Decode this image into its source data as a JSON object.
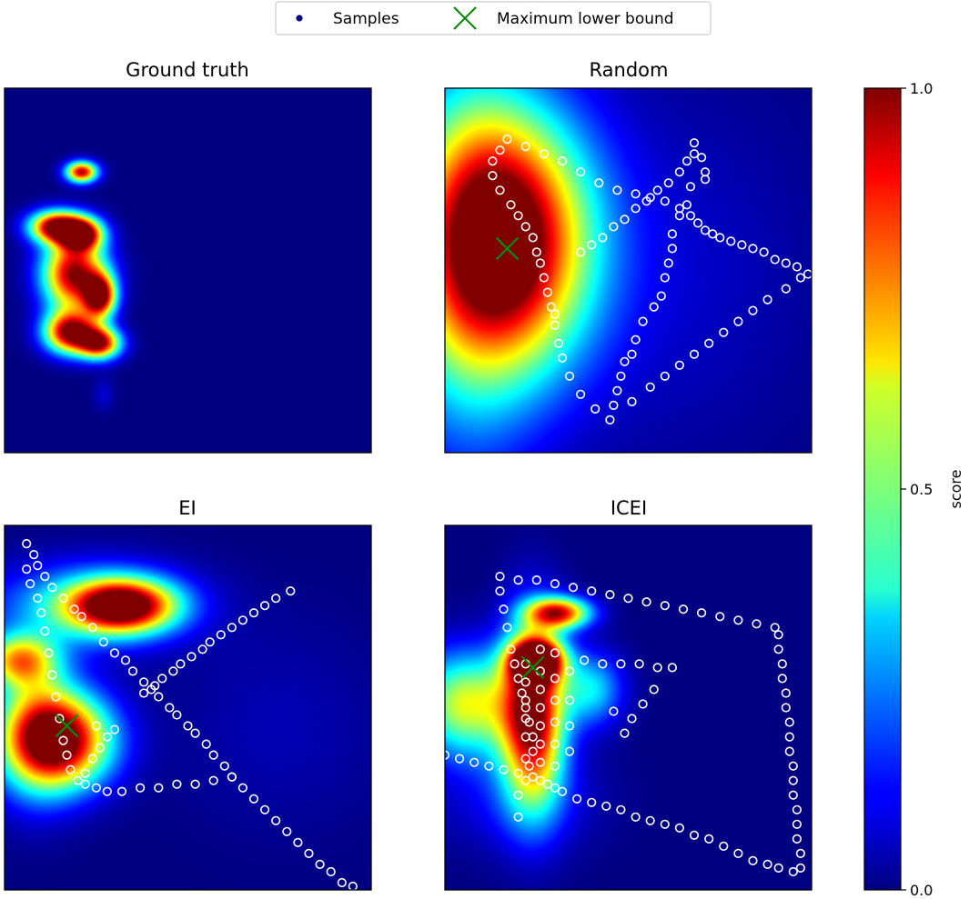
{
  "legend": {
    "samples_label": "Samples",
    "max_label": "Maximum lower bound",
    "samples_color": "#00008b",
    "max_color": "#0a8a0a"
  },
  "colorbar": {
    "label": "score",
    "ticks": [
      0.0,
      0.5,
      1.0
    ],
    "tick_labels": [
      "0.0",
      "0.5",
      "1.0"
    ],
    "colormap": "jet",
    "range": [
      0,
      1
    ]
  },
  "chart_data": [
    {
      "type": "heatmap",
      "title": "Ground truth",
      "xlim": [
        0,
        1
      ],
      "ylim": [
        0,
        1
      ],
      "surface": [
        {
          "x": 0.21,
          "y": 0.77,
          "sx": 0.03,
          "sy": 0.02,
          "a": 0.95
        },
        {
          "x": 0.14,
          "y": 0.62,
          "sx": 0.05,
          "sy": 0.03,
          "a": 1.0
        },
        {
          "x": 0.21,
          "y": 0.6,
          "sx": 0.04,
          "sy": 0.03,
          "a": 0.95
        },
        {
          "x": 0.19,
          "y": 0.49,
          "sx": 0.06,
          "sy": 0.07,
          "a": 1.0
        },
        {
          "x": 0.26,
          "y": 0.43,
          "sx": 0.03,
          "sy": 0.04,
          "a": 0.95
        },
        {
          "x": 0.18,
          "y": 0.33,
          "sx": 0.05,
          "sy": 0.04,
          "a": 1.0
        },
        {
          "x": 0.26,
          "y": 0.3,
          "sx": 0.04,
          "sy": 0.03,
          "a": 0.9
        },
        {
          "x": 0.27,
          "y": 0.16,
          "sx": 0.02,
          "sy": 0.03,
          "a": 0.08
        }
      ],
      "samples": [],
      "max_lower_bound": null
    },
    {
      "type": "heatmap",
      "title": "Random",
      "xlim": [
        0,
        1
      ],
      "ylim": [
        0,
        1
      ],
      "surface": [
        {
          "x": 0.17,
          "y": 0.58,
          "sx": 0.16,
          "sy": 0.24,
          "a": 1.0
        },
        {
          "x": 0.05,
          "y": 0.55,
          "sx": 0.14,
          "sy": 0.4,
          "a": 0.35
        },
        {
          "x": 0.55,
          "y": 0.5,
          "sx": 0.3,
          "sy": 0.35,
          "a": 0.08
        }
      ],
      "samples": [
        [
          0.68,
          0.85
        ],
        [
          0.7,
          0.81
        ],
        [
          0.71,
          0.77
        ],
        [
          0.71,
          0.75
        ],
        [
          0.67,
          0.73
        ],
        [
          0.66,
          0.68
        ],
        [
          0.64,
          0.65
        ],
        [
          0.62,
          0.6
        ],
        [
          0.62,
          0.56
        ],
        [
          0.61,
          0.52
        ],
        [
          0.6,
          0.48
        ],
        [
          0.59,
          0.43
        ],
        [
          0.57,
          0.4
        ],
        [
          0.54,
          0.36
        ],
        [
          0.52,
          0.31
        ],
        [
          0.51,
          0.27
        ],
        [
          0.49,
          0.25
        ],
        [
          0.48,
          0.21
        ],
        [
          0.47,
          0.17
        ],
        [
          0.46,
          0.13
        ],
        [
          0.45,
          0.09
        ],
        [
          0.41,
          0.12
        ],
        [
          0.37,
          0.16
        ],
        [
          0.34,
          0.21
        ],
        [
          0.32,
          0.26
        ],
        [
          0.31,
          0.3
        ],
        [
          0.3,
          0.35
        ],
        [
          0.3,
          0.38
        ],
        [
          0.29,
          0.4
        ],
        [
          0.28,
          0.44
        ],
        [
          0.27,
          0.48
        ],
        [
          0.26,
          0.52
        ],
        [
          0.25,
          0.55
        ],
        [
          0.24,
          0.59
        ],
        [
          0.22,
          0.62
        ],
        [
          0.2,
          0.65
        ],
        [
          0.18,
          0.68
        ],
        [
          0.15,
          0.72
        ],
        [
          0.13,
          0.76
        ],
        [
          0.13,
          0.8
        ],
        [
          0.15,
          0.83
        ],
        [
          0.17,
          0.86
        ],
        [
          0.22,
          0.84
        ],
        [
          0.27,
          0.82
        ],
        [
          0.32,
          0.8
        ],
        [
          0.37,
          0.77
        ],
        [
          0.42,
          0.74
        ],
        [
          0.47,
          0.72
        ],
        [
          0.52,
          0.71
        ],
        [
          0.56,
          0.7
        ],
        [
          0.6,
          0.69
        ],
        [
          0.64,
          0.67
        ],
        [
          0.67,
          0.65
        ],
        [
          0.69,
          0.63
        ],
        [
          0.71,
          0.61
        ],
        [
          0.73,
          0.6
        ],
        [
          0.75,
          0.59
        ],
        [
          0.78,
          0.58
        ],
        [
          0.81,
          0.57
        ],
        [
          0.84,
          0.56
        ],
        [
          0.87,
          0.55
        ],
        [
          0.9,
          0.53
        ],
        [
          0.93,
          0.52
        ],
        [
          0.96,
          0.51
        ],
        [
          0.99,
          0.49
        ],
        [
          0.37,
          0.55
        ],
        [
          0.4,
          0.57
        ],
        [
          0.43,
          0.59
        ],
        [
          0.46,
          0.62
        ],
        [
          0.49,
          0.64
        ],
        [
          0.52,
          0.67
        ],
        [
          0.55,
          0.69
        ],
        [
          0.58,
          0.72
        ],
        [
          0.61,
          0.74
        ],
        [
          0.64,
          0.77
        ],
        [
          0.66,
          0.8
        ],
        [
          0.68,
          0.82
        ],
        [
          0.51,
          0.14
        ],
        [
          0.56,
          0.18
        ],
        [
          0.6,
          0.21
        ],
        [
          0.64,
          0.24
        ],
        [
          0.68,
          0.27
        ],
        [
          0.72,
          0.3
        ],
        [
          0.76,
          0.33
        ],
        [
          0.8,
          0.36
        ],
        [
          0.84,
          0.39
        ],
        [
          0.88,
          0.42
        ],
        [
          0.93,
          0.45
        ],
        [
          0.97,
          0.48
        ]
      ],
      "max_lower_bound": [
        0.17,
        0.56
      ]
    },
    {
      "type": "heatmap",
      "title": "EI",
      "xlim": [
        0,
        1
      ],
      "ylim": [
        0,
        1
      ],
      "surface": [
        {
          "x": 0.15,
          "y": 0.41,
          "sx": 0.1,
          "sy": 0.09,
          "a": 1.0
        },
        {
          "x": 0.32,
          "y": 0.78,
          "sx": 0.1,
          "sy": 0.05,
          "a": 1.0
        },
        {
          "x": 0.04,
          "y": 0.63,
          "sx": 0.07,
          "sy": 0.05,
          "a": 0.6
        },
        {
          "x": 0.23,
          "y": 0.78,
          "sx": 0.18,
          "sy": 0.08,
          "a": 0.35
        },
        {
          "x": 0.08,
          "y": 0.45,
          "sx": 0.08,
          "sy": 0.14,
          "a": 0.35
        },
        {
          "x": 0.75,
          "y": 0.45,
          "sx": 0.2,
          "sy": 0.2,
          "a": 0.05
        }
      ],
      "samples": [
        [
          0.06,
          0.95
        ],
        [
          0.08,
          0.92
        ],
        [
          0.09,
          0.89
        ],
        [
          0.11,
          0.86
        ],
        [
          0.13,
          0.83
        ],
        [
          0.16,
          0.8
        ],
        [
          0.19,
          0.77
        ],
        [
          0.21,
          0.75
        ],
        [
          0.24,
          0.72
        ],
        [
          0.27,
          0.68
        ],
        [
          0.3,
          0.65
        ],
        [
          0.33,
          0.63
        ],
        [
          0.35,
          0.6
        ],
        [
          0.38,
          0.57
        ],
        [
          0.4,
          0.55
        ],
        [
          0.42,
          0.53
        ],
        [
          0.45,
          0.5
        ],
        [
          0.47,
          0.48
        ],
        [
          0.5,
          0.45
        ],
        [
          0.52,
          0.43
        ],
        [
          0.55,
          0.4
        ],
        [
          0.57,
          0.37
        ],
        [
          0.6,
          0.34
        ],
        [
          0.62,
          0.31
        ],
        [
          0.65,
          0.28
        ],
        [
          0.68,
          0.25
        ],
        [
          0.71,
          0.22
        ],
        [
          0.74,
          0.19
        ],
        [
          0.77,
          0.16
        ],
        [
          0.8,
          0.13
        ],
        [
          0.83,
          0.1
        ],
        [
          0.86,
          0.07
        ],
        [
          0.89,
          0.05
        ],
        [
          0.92,
          0.02
        ],
        [
          0.95,
          0.01
        ],
        [
          0.38,
          0.54
        ],
        [
          0.41,
          0.56
        ],
        [
          0.43,
          0.58
        ],
        [
          0.46,
          0.6
        ],
        [
          0.48,
          0.62
        ],
        [
          0.51,
          0.64
        ],
        [
          0.54,
          0.66
        ],
        [
          0.56,
          0.68
        ],
        [
          0.59,
          0.7
        ],
        [
          0.62,
          0.72
        ],
        [
          0.65,
          0.74
        ],
        [
          0.68,
          0.76
        ],
        [
          0.71,
          0.78
        ],
        [
          0.74,
          0.8
        ],
        [
          0.78,
          0.82
        ],
        [
          0.06,
          0.88
        ],
        [
          0.07,
          0.84
        ],
        [
          0.09,
          0.8
        ],
        [
          0.1,
          0.76
        ],
        [
          0.11,
          0.71
        ],
        [
          0.12,
          0.65
        ],
        [
          0.13,
          0.59
        ],
        [
          0.14,
          0.53
        ],
        [
          0.15,
          0.47
        ],
        [
          0.16,
          0.41
        ],
        [
          0.17,
          0.37
        ],
        [
          0.18,
          0.33
        ],
        [
          0.2,
          0.3
        ],
        [
          0.22,
          0.29
        ],
        [
          0.25,
          0.28
        ],
        [
          0.28,
          0.27
        ],
        [
          0.32,
          0.27
        ],
        [
          0.37,
          0.28
        ],
        [
          0.42,
          0.28
        ],
        [
          0.47,
          0.29
        ],
        [
          0.52,
          0.29
        ],
        [
          0.57,
          0.3
        ],
        [
          0.62,
          0.31
        ],
        [
          0.22,
          0.32
        ],
        [
          0.24,
          0.36
        ],
        [
          0.26,
          0.39
        ],
        [
          0.28,
          0.42
        ],
        [
          0.3,
          0.44
        ],
        [
          0.25,
          0.45
        ]
      ],
      "max_lower_bound": [
        0.17,
        0.45
      ]
    },
    {
      "type": "heatmap",
      "title": "ICEI",
      "xlim": [
        0,
        1
      ],
      "ylim": [
        0,
        1
      ],
      "surface": [
        {
          "x": 0.24,
          "y": 0.48,
          "sx": 0.06,
          "sy": 0.17,
          "a": 1.0
        },
        {
          "x": 0.25,
          "y": 0.63,
          "sx": 0.05,
          "sy": 0.04,
          "a": 1.0
        },
        {
          "x": 0.31,
          "y": 0.76,
          "sx": 0.06,
          "sy": 0.03,
          "a": 0.85
        },
        {
          "x": 0.06,
          "y": 0.51,
          "sx": 0.1,
          "sy": 0.1,
          "a": 0.6
        },
        {
          "x": 0.4,
          "y": 0.55,
          "sx": 0.06,
          "sy": 0.07,
          "a": 0.35
        },
        {
          "x": 0.2,
          "y": 0.25,
          "sx": 0.15,
          "sy": 0.1,
          "a": 0.12
        }
      ],
      "samples": [
        [
          0.15,
          0.86
        ],
        [
          0.2,
          0.85
        ],
        [
          0.25,
          0.85
        ],
        [
          0.3,
          0.84
        ],
        [
          0.35,
          0.83
        ],
        [
          0.4,
          0.82
        ],
        [
          0.45,
          0.81
        ],
        [
          0.5,
          0.8
        ],
        [
          0.55,
          0.79
        ],
        [
          0.6,
          0.78
        ],
        [
          0.65,
          0.77
        ],
        [
          0.7,
          0.76
        ],
        [
          0.75,
          0.75
        ],
        [
          0.8,
          0.74
        ],
        [
          0.85,
          0.73
        ],
        [
          0.9,
          0.72
        ],
        [
          0.15,
          0.82
        ],
        [
          0.16,
          0.77
        ],
        [
          0.17,
          0.72
        ],
        [
          0.18,
          0.66
        ],
        [
          0.19,
          0.62
        ],
        [
          0.2,
          0.58
        ],
        [
          0.21,
          0.54
        ],
        [
          0.22,
          0.5
        ],
        [
          0.23,
          0.46
        ],
        [
          0.24,
          0.42
        ],
        [
          0.24,
          0.38
        ],
        [
          0.23,
          0.34
        ],
        [
          0.22,
          0.3
        ],
        [
          0.2,
          0.26
        ],
        [
          0.2,
          0.2
        ],
        [
          0.22,
          0.62
        ],
        [
          0.22,
          0.57
        ],
        [
          0.22,
          0.52
        ],
        [
          0.22,
          0.47
        ],
        [
          0.22,
          0.42
        ],
        [
          0.22,
          0.36
        ],
        [
          0.26,
          0.66
        ],
        [
          0.26,
          0.6
        ],
        [
          0.26,
          0.55
        ],
        [
          0.26,
          0.5
        ],
        [
          0.26,
          0.45
        ],
        [
          0.26,
          0.4
        ],
        [
          0.26,
          0.35
        ],
        [
          0.26,
          0.3
        ],
        [
          0.3,
          0.65
        ],
        [
          0.3,
          0.58
        ],
        [
          0.3,
          0.52
        ],
        [
          0.3,
          0.46
        ],
        [
          0.3,
          0.4
        ],
        [
          0.3,
          0.34
        ],
        [
          0.3,
          0.28
        ],
        [
          0.34,
          0.6
        ],
        [
          0.34,
          0.52
        ],
        [
          0.34,
          0.45
        ],
        [
          0.34,
          0.38
        ],
        [
          0.0,
          0.37
        ],
        [
          0.04,
          0.36
        ],
        [
          0.08,
          0.35
        ],
        [
          0.12,
          0.34
        ],
        [
          0.16,
          0.33
        ],
        [
          0.2,
          0.32
        ],
        [
          0.24,
          0.31
        ],
        [
          0.28,
          0.29
        ],
        [
          0.32,
          0.27
        ],
        [
          0.36,
          0.25
        ],
        [
          0.4,
          0.24
        ],
        [
          0.44,
          0.23
        ],
        [
          0.48,
          0.22
        ],
        [
          0.52,
          0.2
        ],
        [
          0.56,
          0.19
        ],
        [
          0.6,
          0.18
        ],
        [
          0.64,
          0.17
        ],
        [
          0.68,
          0.15
        ],
        [
          0.72,
          0.14
        ],
        [
          0.76,
          0.12
        ],
        [
          0.8,
          0.1
        ],
        [
          0.84,
          0.08
        ],
        [
          0.88,
          0.07
        ],
        [
          0.91,
          0.06
        ],
        [
          0.95,
          0.05
        ],
        [
          0.91,
          0.7
        ],
        [
          0.91,
          0.66
        ],
        [
          0.92,
          0.62
        ],
        [
          0.92,
          0.58
        ],
        [
          0.93,
          0.54
        ],
        [
          0.93,
          0.5
        ],
        [
          0.94,
          0.46
        ],
        [
          0.94,
          0.42
        ],
        [
          0.94,
          0.38
        ],
        [
          0.95,
          0.34
        ],
        [
          0.95,
          0.3
        ],
        [
          0.95,
          0.26
        ],
        [
          0.96,
          0.22
        ],
        [
          0.96,
          0.18
        ],
        [
          0.96,
          0.14
        ],
        [
          0.97,
          0.1
        ],
        [
          0.97,
          0.06
        ],
        [
          0.38,
          0.63
        ],
        [
          0.43,
          0.62
        ],
        [
          0.48,
          0.62
        ],
        [
          0.53,
          0.62
        ],
        [
          0.58,
          0.61
        ],
        [
          0.62,
          0.61
        ],
        [
          0.57,
          0.55
        ],
        [
          0.54,
          0.51
        ],
        [
          0.51,
          0.47
        ],
        [
          0.49,
          0.43
        ],
        [
          0.46,
          0.49
        ]
      ],
      "max_lower_bound": [
        0.24,
        0.61
      ]
    }
  ]
}
